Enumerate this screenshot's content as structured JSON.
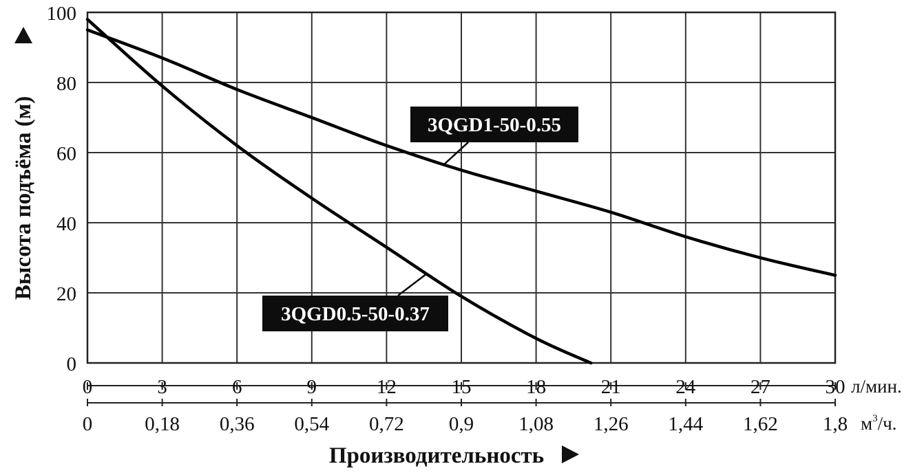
{
  "chart_data": {
    "type": "line",
    "xlabel": "Производительность",
    "ylabel": "Высота подъёма (м)",
    "xlim": [
      0,
      30
    ],
    "ylim": [
      0,
      100
    ],
    "grid": true,
    "x_ticks": [
      "0",
      "3",
      "6",
      "9",
      "12",
      "15",
      "18",
      "21",
      "24",
      "27",
      "30"
    ],
    "x_unit": "л/мин.",
    "x2_ticks": [
      "0",
      "0,18",
      "0,36",
      "0,54",
      "0,72",
      "0,9",
      "1,08",
      "1,26",
      "1,44",
      "1,62",
      "1,8"
    ],
    "x2_unit": "м³/ч.",
    "y_ticks": [
      "0",
      "20",
      "40",
      "60",
      "80",
      "100"
    ],
    "series": [
      {
        "name": "3QGD1-50-0.55",
        "x": [
          0,
          3,
          6,
          9,
          12,
          15,
          18,
          21,
          24,
          27,
          30
        ],
        "y": [
          95,
          87,
          78,
          70,
          62,
          55,
          49,
          43,
          36,
          30,
          25
        ]
      },
      {
        "name": "3QGD0.5-50-0.37",
        "x": [
          0,
          3,
          6,
          9,
          12,
          15,
          18,
          20.2
        ],
        "y": [
          98,
          79,
          62,
          47,
          33,
          19,
          7,
          0
        ]
      }
    ]
  }
}
